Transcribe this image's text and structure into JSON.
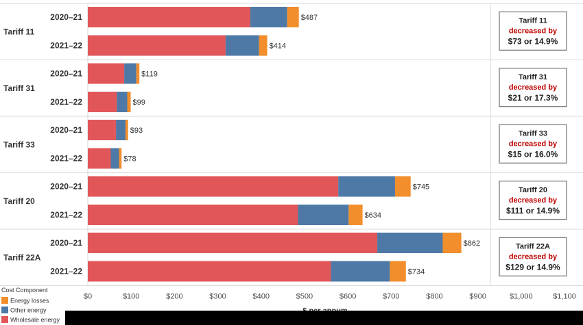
{
  "chart_data": {
    "type": "bar",
    "orientation": "horizontal",
    "stacked": true,
    "xlabel": "$ per annum",
    "xlim": [
      0,
      1100
    ],
    "x_ticks": [
      "$0",
      "$100",
      "$200",
      "$300",
      "$400",
      "$500",
      "$600",
      "$700",
      "$800",
      "$900",
      "$1,000",
      "$1,100"
    ],
    "grid": false,
    "legend": {
      "title": "Cost Component",
      "position": "bottom-left",
      "items": [
        {
          "name": "Energy losses",
          "color": "#f28e2b"
        },
        {
          "name": "Other energy",
          "color": "#4e79a7"
        },
        {
          "name": "Wholesale energy",
          "color": "#e15759"
        }
      ]
    },
    "series_order": [
      "Wholesale energy",
      "Other energy",
      "Energy losses"
    ],
    "groups": [
      {
        "name": "Tariff 11",
        "rows": [
          {
            "year": "2020–21",
            "values": {
              "Wholesale energy": 375,
              "Other energy": 85,
              "Energy losses": 27
            },
            "total_label": "$487"
          },
          {
            "year": "2021–22",
            "values": {
              "Wholesale energy": 318,
              "Other energy": 77,
              "Energy losses": 19
            },
            "total_label": "$414"
          }
        ],
        "note": {
          "line1": "Tariff 11",
          "line2": "decreased by",
          "line3": "$73 or 14.9%"
        }
      },
      {
        "name": "Tariff 31",
        "rows": [
          {
            "year": "2020–21",
            "values": {
              "Wholesale energy": 84,
              "Other energy": 28,
              "Energy losses": 7
            },
            "total_label": "$119"
          },
          {
            "year": "2021–22",
            "values": {
              "Wholesale energy": 67,
              "Other energy": 24,
              "Energy losses": 8
            },
            "total_label": "$99"
          }
        ],
        "note": {
          "line1": "Tariff 31",
          "line2": "decreased by",
          "line3": "$21 or 17.3%"
        }
      },
      {
        "name": "Tariff 33",
        "rows": [
          {
            "year": "2020–21",
            "values": {
              "Wholesale energy": 65,
              "Other energy": 22,
              "Energy losses": 6
            },
            "total_label": "$93"
          },
          {
            "year": "2021–22",
            "values": {
              "Wholesale energy": 53,
              "Other energy": 19,
              "Energy losses": 6
            },
            "total_label": "$78"
          }
        ],
        "note": {
          "line1": "Tariff 33",
          "line2": "decreased by",
          "line3": "$15 or 16.0%"
        }
      },
      {
        "name": "Tariff 20",
        "rows": [
          {
            "year": "2020–21",
            "values": {
              "Wholesale energy": 578,
              "Other energy": 131,
              "Energy losses": 36
            },
            "total_label": "$745"
          },
          {
            "year": "2021–22",
            "values": {
              "Wholesale energy": 485,
              "Other energy": 117,
              "Energy losses": 32
            },
            "total_label": "$634"
          }
        ],
        "note": {
          "line1": "Tariff 20",
          "line2": "decreased by",
          "line3": "$111 or 14.9%"
        }
      },
      {
        "name": "Tariff 22A",
        "rows": [
          {
            "year": "2020–21",
            "values": {
              "Wholesale energy": 668,
              "Other energy": 151,
              "Energy losses": 43
            },
            "total_label": "$862"
          },
          {
            "year": "2021–22",
            "values": {
              "Wholesale energy": 561,
              "Other energy": 136,
              "Energy losses": 37
            },
            "total_label": "$734"
          }
        ],
        "note": {
          "line1": "Tariff 22A",
          "line2": "decreased by",
          "line3": "$129 or 14.9%"
        }
      }
    ]
  }
}
